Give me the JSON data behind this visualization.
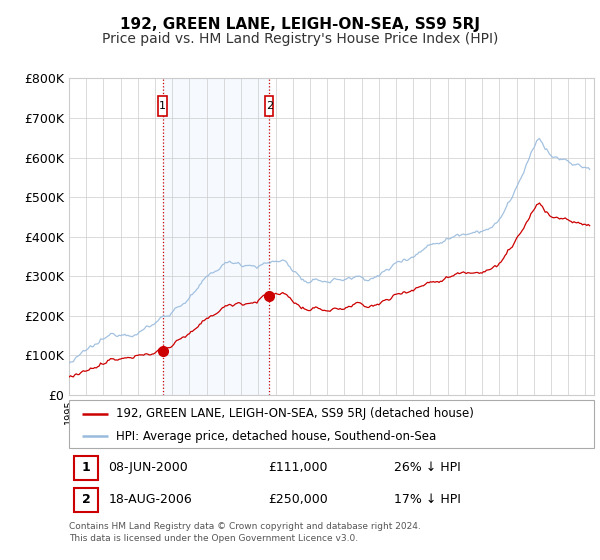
{
  "title": "192, GREEN LANE, LEIGH-ON-SEA, SS9 5RJ",
  "subtitle": "Price paid vs. HM Land Registry's House Price Index (HPI)",
  "ylabel_ticks": [
    "£0",
    "£100K",
    "£200K",
    "£300K",
    "£400K",
    "£500K",
    "£600K",
    "£700K",
    "£800K"
  ],
  "ylim": [
    0,
    800000
  ],
  "xlim_start": 1995.0,
  "xlim_end": 2025.5,
  "sale1_date": 2000.44,
  "sale1_price": 111000,
  "sale2_date": 2006.63,
  "sale2_price": 250000,
  "legend_line1": "192, GREEN LANE, LEIGH-ON-SEA, SS9 5RJ (detached house)",
  "legend_line2": "HPI: Average price, detached house, Southend-on-Sea",
  "footer": "Contains HM Land Registry data © Crown copyright and database right 2024.\nThis data is licensed under the Open Government Licence v3.0.",
  "line_color_red": "#cc0000",
  "line_color_blue": "#99bbdd",
  "vline_color": "#cc0000",
  "sale_box_color": "#cc0000",
  "span_color": "#ddeeff",
  "bg_color": "#ffffff",
  "grid_color": "#cccccc",
  "tick_fontsize": 9,
  "title_fontsize": 11,
  "subtitle_fontsize": 10
}
